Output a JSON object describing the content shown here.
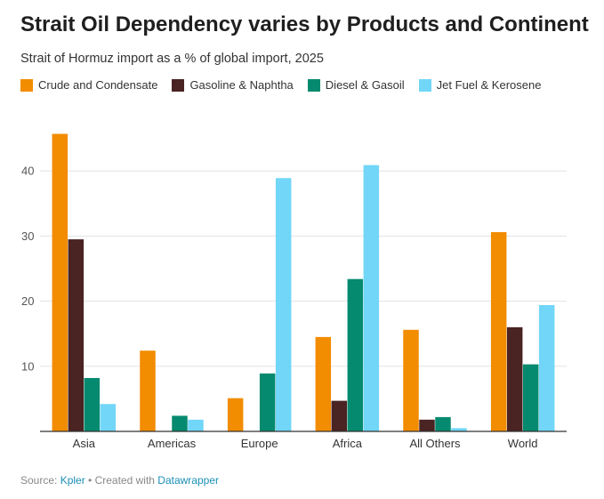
{
  "title": "Strait Oil Dependency varies by Products and Continent",
  "subtitle": "Strait of Hormuz import as a % of global import, 2025",
  "source": {
    "prefix": "Source: ",
    "source_name": "Kpler",
    "middle": " • Created with ",
    "tool_name": "Datawrapper"
  },
  "chart_data": {
    "type": "bar",
    "categories": [
      "Asia",
      "Americas",
      "Europe",
      "Africa",
      "All Others",
      "World"
    ],
    "series": [
      {
        "name": "Crude and Condensate",
        "color": "#f28c00",
        "values": [
          45.7,
          12.4,
          5.1,
          14.5,
          15.6,
          30.6
        ]
      },
      {
        "name": "Gasoline & Naphtha",
        "color": "#4a2323",
        "values": [
          29.5,
          0,
          0,
          4.7,
          1.8,
          16.0
        ]
      },
      {
        "name": "Diesel & Gasoil",
        "color": "#068a6f",
        "values": [
          8.2,
          2.4,
          8.9,
          23.4,
          2.2,
          10.3
        ]
      },
      {
        "name": "Jet Fuel & Kerosene",
        "color": "#71d6f7",
        "values": [
          4.2,
          1.8,
          38.9,
          40.9,
          0.5,
          19.4
        ]
      }
    ],
    "y_ticks": [
      "10",
      "20",
      "30",
      "40"
    ],
    "ylim": [
      0,
      47
    ],
    "grid": true,
    "legend": "top-left",
    "xlabel": "",
    "ylabel": ""
  }
}
